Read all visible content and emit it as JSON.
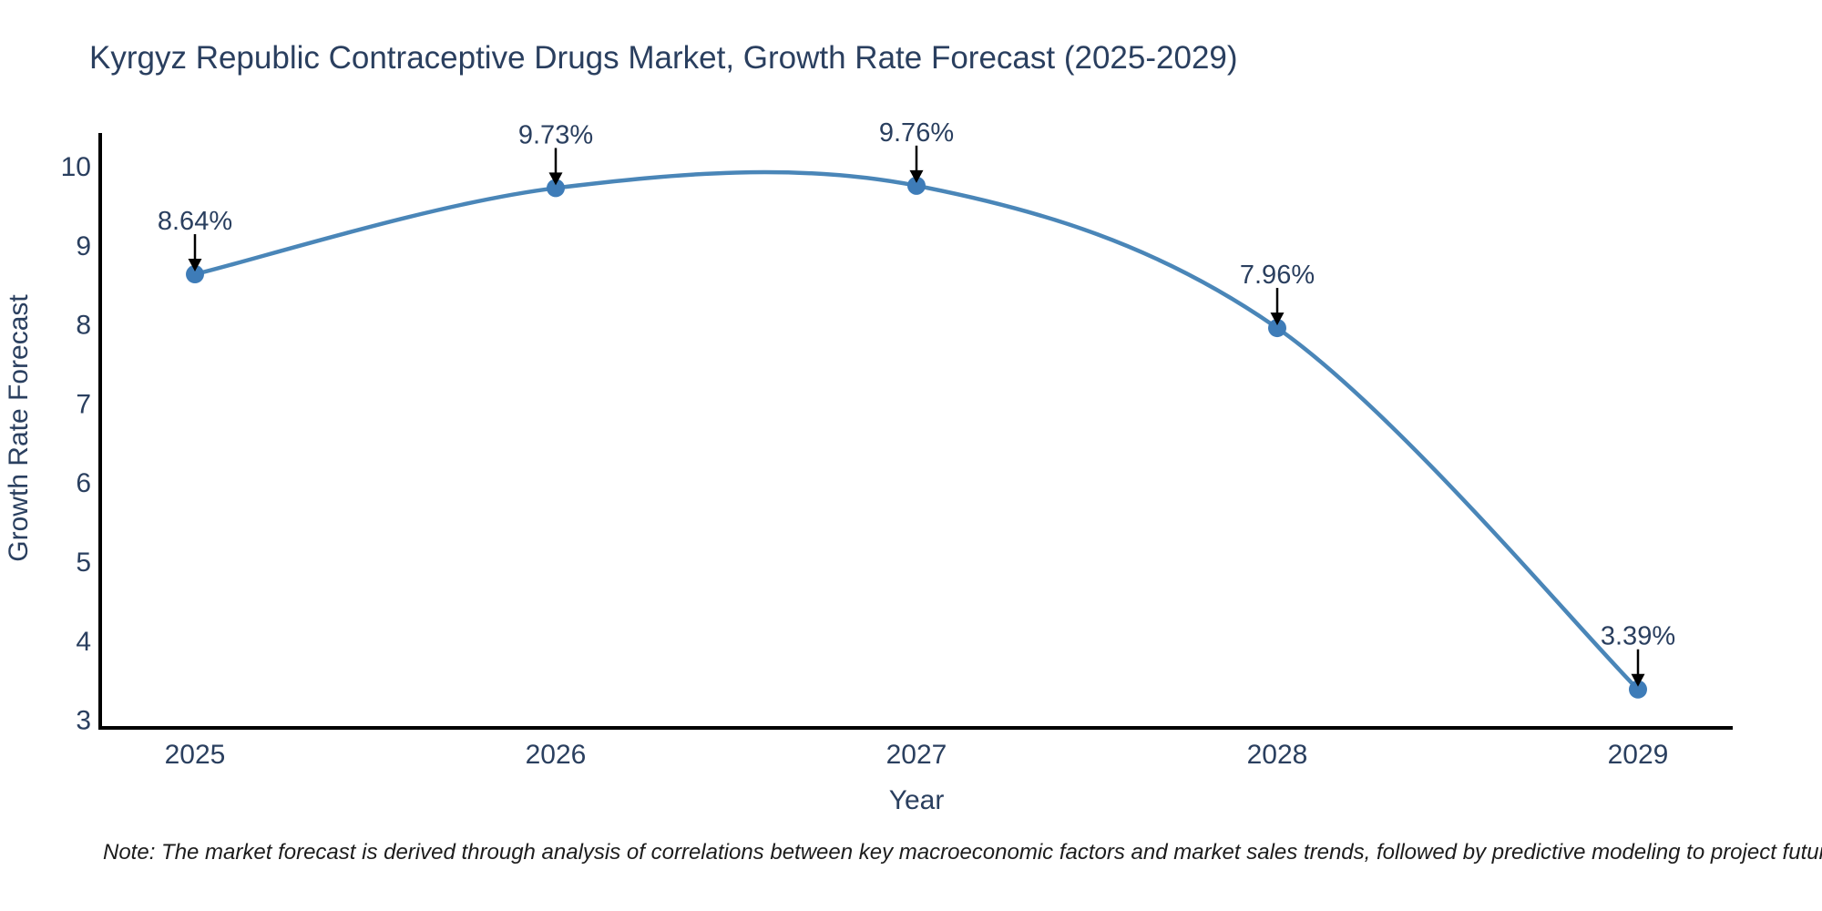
{
  "chart_data": {
    "type": "line",
    "title": "Kyrgyz Republic Contraceptive Drugs Market, Growth Rate Forecast (2025-2029)",
    "xlabel": "Year",
    "ylabel": "Growth Rate Forecast",
    "x": [
      2025,
      2026,
      2027,
      2028,
      2029
    ],
    "values": [
      8.64,
      9.73,
      9.76,
      7.96,
      3.39
    ],
    "point_labels": [
      "8.64%",
      "9.73%",
      "9.76%",
      "7.96%",
      "3.39%"
    ],
    "x_ticks": [
      "2025",
      "2026",
      "2027",
      "2028",
      "2029"
    ],
    "y_ticks": [
      3,
      4,
      5,
      6,
      7,
      8,
      9,
      10
    ],
    "xlim": [
      2024.74,
      2029.26
    ],
    "ylim": [
      2.9,
      10.43
    ],
    "line_shape": "spline",
    "grid": false,
    "legend": "none",
    "colors": {
      "line": "#4a86b8",
      "marker": "#3e7cb8",
      "axis": "#000000",
      "text": "#2a3f5f",
      "annotation_arrow": "#000000",
      "note": "#1c1c1c",
      "background": "#ffffff"
    }
  },
  "note": "Note: The market forecast is derived through analysis of correlations between key macroeconomic factors and market sales trends, followed by predictive modeling to project future sales"
}
